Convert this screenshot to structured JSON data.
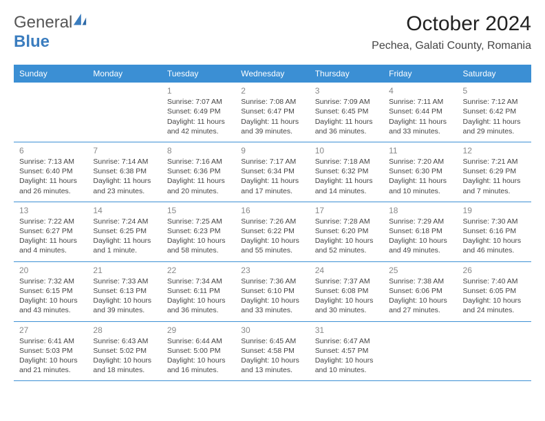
{
  "brand": {
    "part1": "General",
    "part2": "Blue"
  },
  "title": "October 2024",
  "location": "Pechea, Galati County, Romania",
  "weekdays": [
    "Sunday",
    "Monday",
    "Tuesday",
    "Wednesday",
    "Thursday",
    "Friday",
    "Saturday"
  ],
  "colors": {
    "header_bg": "#3b8fd4",
    "accent": "#3b7dbf",
    "text": "#333333",
    "muted": "#888888"
  },
  "weeks": [
    [
      null,
      null,
      {
        "n": "1",
        "sr": "Sunrise: 7:07 AM",
        "ss": "Sunset: 6:49 PM",
        "dl": "Daylight: 11 hours and 42 minutes."
      },
      {
        "n": "2",
        "sr": "Sunrise: 7:08 AM",
        "ss": "Sunset: 6:47 PM",
        "dl": "Daylight: 11 hours and 39 minutes."
      },
      {
        "n": "3",
        "sr": "Sunrise: 7:09 AM",
        "ss": "Sunset: 6:45 PM",
        "dl": "Daylight: 11 hours and 36 minutes."
      },
      {
        "n": "4",
        "sr": "Sunrise: 7:11 AM",
        "ss": "Sunset: 6:44 PM",
        "dl": "Daylight: 11 hours and 33 minutes."
      },
      {
        "n": "5",
        "sr": "Sunrise: 7:12 AM",
        "ss": "Sunset: 6:42 PM",
        "dl": "Daylight: 11 hours and 29 minutes."
      }
    ],
    [
      {
        "n": "6",
        "sr": "Sunrise: 7:13 AM",
        "ss": "Sunset: 6:40 PM",
        "dl": "Daylight: 11 hours and 26 minutes."
      },
      {
        "n": "7",
        "sr": "Sunrise: 7:14 AM",
        "ss": "Sunset: 6:38 PM",
        "dl": "Daylight: 11 hours and 23 minutes."
      },
      {
        "n": "8",
        "sr": "Sunrise: 7:16 AM",
        "ss": "Sunset: 6:36 PM",
        "dl": "Daylight: 11 hours and 20 minutes."
      },
      {
        "n": "9",
        "sr": "Sunrise: 7:17 AM",
        "ss": "Sunset: 6:34 PM",
        "dl": "Daylight: 11 hours and 17 minutes."
      },
      {
        "n": "10",
        "sr": "Sunrise: 7:18 AM",
        "ss": "Sunset: 6:32 PM",
        "dl": "Daylight: 11 hours and 14 minutes."
      },
      {
        "n": "11",
        "sr": "Sunrise: 7:20 AM",
        "ss": "Sunset: 6:30 PM",
        "dl": "Daylight: 11 hours and 10 minutes."
      },
      {
        "n": "12",
        "sr": "Sunrise: 7:21 AM",
        "ss": "Sunset: 6:29 PM",
        "dl": "Daylight: 11 hours and 7 minutes."
      }
    ],
    [
      {
        "n": "13",
        "sr": "Sunrise: 7:22 AM",
        "ss": "Sunset: 6:27 PM",
        "dl": "Daylight: 11 hours and 4 minutes."
      },
      {
        "n": "14",
        "sr": "Sunrise: 7:24 AM",
        "ss": "Sunset: 6:25 PM",
        "dl": "Daylight: 11 hours and 1 minute."
      },
      {
        "n": "15",
        "sr": "Sunrise: 7:25 AM",
        "ss": "Sunset: 6:23 PM",
        "dl": "Daylight: 10 hours and 58 minutes."
      },
      {
        "n": "16",
        "sr": "Sunrise: 7:26 AM",
        "ss": "Sunset: 6:22 PM",
        "dl": "Daylight: 10 hours and 55 minutes."
      },
      {
        "n": "17",
        "sr": "Sunrise: 7:28 AM",
        "ss": "Sunset: 6:20 PM",
        "dl": "Daylight: 10 hours and 52 minutes."
      },
      {
        "n": "18",
        "sr": "Sunrise: 7:29 AM",
        "ss": "Sunset: 6:18 PM",
        "dl": "Daylight: 10 hours and 49 minutes."
      },
      {
        "n": "19",
        "sr": "Sunrise: 7:30 AM",
        "ss": "Sunset: 6:16 PM",
        "dl": "Daylight: 10 hours and 46 minutes."
      }
    ],
    [
      {
        "n": "20",
        "sr": "Sunrise: 7:32 AM",
        "ss": "Sunset: 6:15 PM",
        "dl": "Daylight: 10 hours and 43 minutes."
      },
      {
        "n": "21",
        "sr": "Sunrise: 7:33 AM",
        "ss": "Sunset: 6:13 PM",
        "dl": "Daylight: 10 hours and 39 minutes."
      },
      {
        "n": "22",
        "sr": "Sunrise: 7:34 AM",
        "ss": "Sunset: 6:11 PM",
        "dl": "Daylight: 10 hours and 36 minutes."
      },
      {
        "n": "23",
        "sr": "Sunrise: 7:36 AM",
        "ss": "Sunset: 6:10 PM",
        "dl": "Daylight: 10 hours and 33 minutes."
      },
      {
        "n": "24",
        "sr": "Sunrise: 7:37 AM",
        "ss": "Sunset: 6:08 PM",
        "dl": "Daylight: 10 hours and 30 minutes."
      },
      {
        "n": "25",
        "sr": "Sunrise: 7:38 AM",
        "ss": "Sunset: 6:06 PM",
        "dl": "Daylight: 10 hours and 27 minutes."
      },
      {
        "n": "26",
        "sr": "Sunrise: 7:40 AM",
        "ss": "Sunset: 6:05 PM",
        "dl": "Daylight: 10 hours and 24 minutes."
      }
    ],
    [
      {
        "n": "27",
        "sr": "Sunrise: 6:41 AM",
        "ss": "Sunset: 5:03 PM",
        "dl": "Daylight: 10 hours and 21 minutes."
      },
      {
        "n": "28",
        "sr": "Sunrise: 6:43 AM",
        "ss": "Sunset: 5:02 PM",
        "dl": "Daylight: 10 hours and 18 minutes."
      },
      {
        "n": "29",
        "sr": "Sunrise: 6:44 AM",
        "ss": "Sunset: 5:00 PM",
        "dl": "Daylight: 10 hours and 16 minutes."
      },
      {
        "n": "30",
        "sr": "Sunrise: 6:45 AM",
        "ss": "Sunset: 4:58 PM",
        "dl": "Daylight: 10 hours and 13 minutes."
      },
      {
        "n": "31",
        "sr": "Sunrise: 6:47 AM",
        "ss": "Sunset: 4:57 PM",
        "dl": "Daylight: 10 hours and 10 minutes."
      },
      null,
      null
    ]
  ]
}
